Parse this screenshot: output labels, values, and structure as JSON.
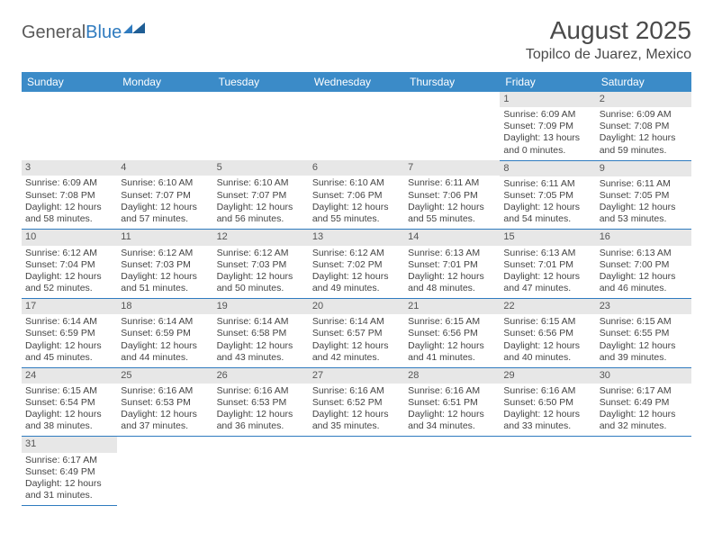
{
  "logo": {
    "part1": "General",
    "part2": "Blue"
  },
  "title": "August 2025",
  "location": "Topilco de Juarez, Mexico",
  "colors": {
    "header_bg": "#3b8bc8",
    "header_fg": "#ffffff",
    "daynum_bg": "#e7e7e7",
    "row_border": "#2f7bbf",
    "text": "#444444"
  },
  "dayHeaders": [
    "Sunday",
    "Monday",
    "Tuesday",
    "Wednesday",
    "Thursday",
    "Friday",
    "Saturday"
  ],
  "weeks": [
    [
      null,
      null,
      null,
      null,
      null,
      {
        "n": "1",
        "sr": "Sunrise: 6:09 AM",
        "ss": "Sunset: 7:09 PM",
        "dl": "Daylight: 13 hours and 0 minutes."
      },
      {
        "n": "2",
        "sr": "Sunrise: 6:09 AM",
        "ss": "Sunset: 7:08 PM",
        "dl": "Daylight: 12 hours and 59 minutes."
      }
    ],
    [
      {
        "n": "3",
        "sr": "Sunrise: 6:09 AM",
        "ss": "Sunset: 7:08 PM",
        "dl": "Daylight: 12 hours and 58 minutes."
      },
      {
        "n": "4",
        "sr": "Sunrise: 6:10 AM",
        "ss": "Sunset: 7:07 PM",
        "dl": "Daylight: 12 hours and 57 minutes."
      },
      {
        "n": "5",
        "sr": "Sunrise: 6:10 AM",
        "ss": "Sunset: 7:07 PM",
        "dl": "Daylight: 12 hours and 56 minutes."
      },
      {
        "n": "6",
        "sr": "Sunrise: 6:10 AM",
        "ss": "Sunset: 7:06 PM",
        "dl": "Daylight: 12 hours and 55 minutes."
      },
      {
        "n": "7",
        "sr": "Sunrise: 6:11 AM",
        "ss": "Sunset: 7:06 PM",
        "dl": "Daylight: 12 hours and 55 minutes."
      },
      {
        "n": "8",
        "sr": "Sunrise: 6:11 AM",
        "ss": "Sunset: 7:05 PM",
        "dl": "Daylight: 12 hours and 54 minutes."
      },
      {
        "n": "9",
        "sr": "Sunrise: 6:11 AM",
        "ss": "Sunset: 7:05 PM",
        "dl": "Daylight: 12 hours and 53 minutes."
      }
    ],
    [
      {
        "n": "10",
        "sr": "Sunrise: 6:12 AM",
        "ss": "Sunset: 7:04 PM",
        "dl": "Daylight: 12 hours and 52 minutes."
      },
      {
        "n": "11",
        "sr": "Sunrise: 6:12 AM",
        "ss": "Sunset: 7:03 PM",
        "dl": "Daylight: 12 hours and 51 minutes."
      },
      {
        "n": "12",
        "sr": "Sunrise: 6:12 AM",
        "ss": "Sunset: 7:03 PM",
        "dl": "Daylight: 12 hours and 50 minutes."
      },
      {
        "n": "13",
        "sr": "Sunrise: 6:12 AM",
        "ss": "Sunset: 7:02 PM",
        "dl": "Daylight: 12 hours and 49 minutes."
      },
      {
        "n": "14",
        "sr": "Sunrise: 6:13 AM",
        "ss": "Sunset: 7:01 PM",
        "dl": "Daylight: 12 hours and 48 minutes."
      },
      {
        "n": "15",
        "sr": "Sunrise: 6:13 AM",
        "ss": "Sunset: 7:01 PM",
        "dl": "Daylight: 12 hours and 47 minutes."
      },
      {
        "n": "16",
        "sr": "Sunrise: 6:13 AM",
        "ss": "Sunset: 7:00 PM",
        "dl": "Daylight: 12 hours and 46 minutes."
      }
    ],
    [
      {
        "n": "17",
        "sr": "Sunrise: 6:14 AM",
        "ss": "Sunset: 6:59 PM",
        "dl": "Daylight: 12 hours and 45 minutes."
      },
      {
        "n": "18",
        "sr": "Sunrise: 6:14 AM",
        "ss": "Sunset: 6:59 PM",
        "dl": "Daylight: 12 hours and 44 minutes."
      },
      {
        "n": "19",
        "sr": "Sunrise: 6:14 AM",
        "ss": "Sunset: 6:58 PM",
        "dl": "Daylight: 12 hours and 43 minutes."
      },
      {
        "n": "20",
        "sr": "Sunrise: 6:14 AM",
        "ss": "Sunset: 6:57 PM",
        "dl": "Daylight: 12 hours and 42 minutes."
      },
      {
        "n": "21",
        "sr": "Sunrise: 6:15 AM",
        "ss": "Sunset: 6:56 PM",
        "dl": "Daylight: 12 hours and 41 minutes."
      },
      {
        "n": "22",
        "sr": "Sunrise: 6:15 AM",
        "ss": "Sunset: 6:56 PM",
        "dl": "Daylight: 12 hours and 40 minutes."
      },
      {
        "n": "23",
        "sr": "Sunrise: 6:15 AM",
        "ss": "Sunset: 6:55 PM",
        "dl": "Daylight: 12 hours and 39 minutes."
      }
    ],
    [
      {
        "n": "24",
        "sr": "Sunrise: 6:15 AM",
        "ss": "Sunset: 6:54 PM",
        "dl": "Daylight: 12 hours and 38 minutes."
      },
      {
        "n": "25",
        "sr": "Sunrise: 6:16 AM",
        "ss": "Sunset: 6:53 PM",
        "dl": "Daylight: 12 hours and 37 minutes."
      },
      {
        "n": "26",
        "sr": "Sunrise: 6:16 AM",
        "ss": "Sunset: 6:53 PM",
        "dl": "Daylight: 12 hours and 36 minutes."
      },
      {
        "n": "27",
        "sr": "Sunrise: 6:16 AM",
        "ss": "Sunset: 6:52 PM",
        "dl": "Daylight: 12 hours and 35 minutes."
      },
      {
        "n": "28",
        "sr": "Sunrise: 6:16 AM",
        "ss": "Sunset: 6:51 PM",
        "dl": "Daylight: 12 hours and 34 minutes."
      },
      {
        "n": "29",
        "sr": "Sunrise: 6:16 AM",
        "ss": "Sunset: 6:50 PM",
        "dl": "Daylight: 12 hours and 33 minutes."
      },
      {
        "n": "30",
        "sr": "Sunrise: 6:17 AM",
        "ss": "Sunset: 6:49 PM",
        "dl": "Daylight: 12 hours and 32 minutes."
      }
    ],
    [
      {
        "n": "31",
        "sr": "Sunrise: 6:17 AM",
        "ss": "Sunset: 6:49 PM",
        "dl": "Daylight: 12 hours and 31 minutes."
      },
      null,
      null,
      null,
      null,
      null,
      null
    ]
  ]
}
